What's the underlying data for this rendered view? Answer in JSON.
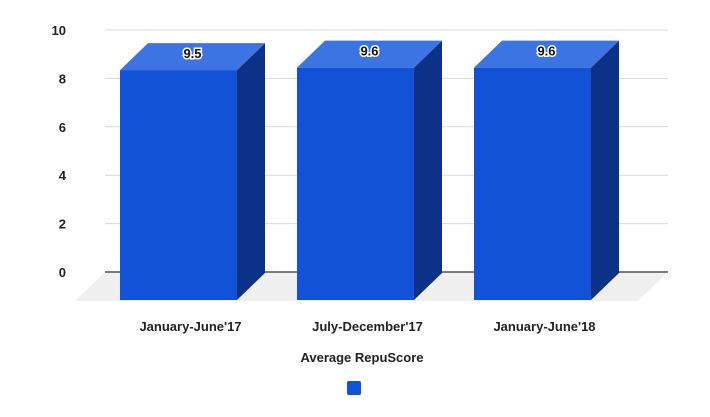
{
  "chart_data": {
    "type": "bar",
    "categories": [
      "January-June'17",
      "July-December'17",
      "January-June'18"
    ],
    "series": [
      {
        "name": "Average RepuScore",
        "values": [
          9.5,
          9.6,
          9.6
        ]
      }
    ],
    "data_labels": [
      "9.5",
      "9.6",
      "9.6"
    ],
    "yticks": [
      "0",
      "2",
      "4",
      "6",
      "8",
      "10"
    ],
    "ylim": [
      0,
      10
    ],
    "grid": true,
    "legend_position": "bottom",
    "three_d": true,
    "colors": {
      "bar_front": "#1152d6",
      "bar_top": "#3d74e3",
      "bar_side": "#0c3287",
      "floor": "#f0f0f0",
      "grid": "#d9d9d9",
      "axis": "#333333"
    }
  }
}
